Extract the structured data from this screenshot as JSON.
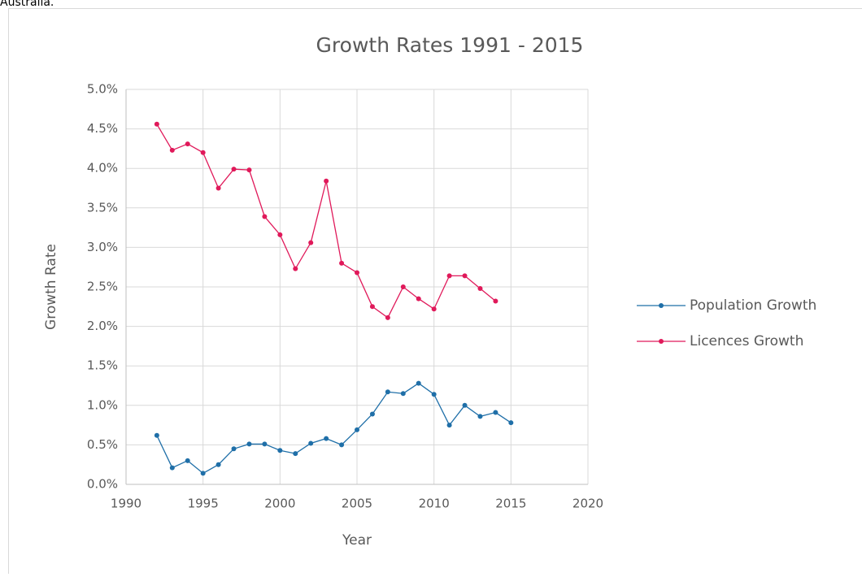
{
  "caption": "Australia.",
  "chart_data": {
    "type": "line",
    "title": "Growth Rates 1991 - 2015",
    "x_label": "Year",
    "y_label": "Growth Rate",
    "x": [
      1992,
      1993,
      1994,
      1995,
      1996,
      1997,
      1998,
      1999,
      2000,
      2001,
      2002,
      2003,
      2004,
      2005,
      2006,
      2007,
      2008,
      2009,
      2010,
      2011,
      2012,
      2013,
      2014,
      2015
    ],
    "series": [
      {
        "name": "Population Growth",
        "color": "#1f6fa8",
        "values": [
          0.62,
          0.21,
          0.3,
          0.14,
          0.25,
          0.45,
          0.51,
          0.51,
          0.43,
          0.39,
          0.52,
          0.58,
          0.5,
          0.69,
          0.89,
          1.17,
          1.15,
          1.28,
          1.14,
          0.75,
          1.0,
          0.86,
          0.91,
          0.78
        ]
      },
      {
        "name": "Licences Growth",
        "color": "#e0195a",
        "values": [
          4.56,
          4.23,
          4.31,
          4.2,
          3.75,
          3.99,
          3.98,
          3.39,
          3.16,
          2.73,
          3.06,
          3.84,
          2.8,
          2.68,
          2.25,
          2.11,
          2.5,
          2.35,
          2.22,
          2.64,
          2.64,
          2.48,
          2.32,
          null
        ]
      }
    ],
    "xlim": [
      1990,
      2020
    ],
    "xticks": [
      1990,
      1995,
      2000,
      2005,
      2010,
      2015,
      2020
    ],
    "ylim": [
      0,
      5
    ],
    "yticks": [
      {
        "value": 0,
        "label": "0.0%"
      },
      {
        "value": 0.5,
        "label": "0.5%"
      },
      {
        "value": 1,
        "label": "1.0%"
      },
      {
        "value": 1.5,
        "label": "1.5%"
      },
      {
        "value": 2,
        "label": "2.0%"
      },
      {
        "value": 2.5,
        "label": "2.5%"
      },
      {
        "value": 3,
        "label": "3.0%"
      },
      {
        "value": 3.5,
        "label": "3.5%"
      },
      {
        "value": 4,
        "label": "4.0%"
      },
      {
        "value": 4.5,
        "label": "4.5%"
      },
      {
        "value": 5,
        "label": "5.0%"
      }
    ],
    "grid": true,
    "legend": "right"
  }
}
